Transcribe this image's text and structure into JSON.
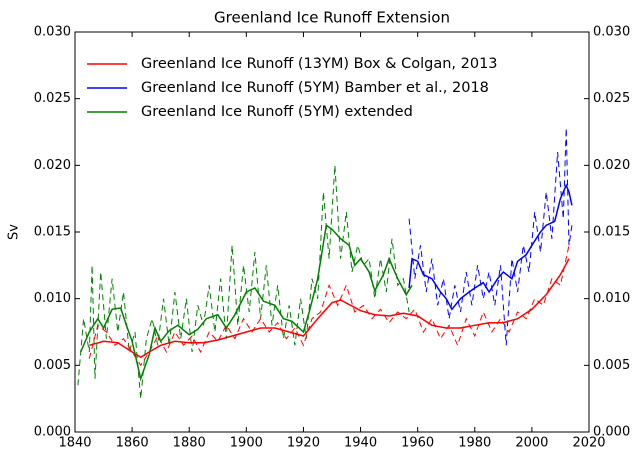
{
  "chart_data": {
    "type": "line",
    "title": "Greenland Ice Runoff Extension",
    "y_label": "Sv",
    "xlim": [
      1840,
      2020
    ],
    "xticks": [
      1840,
      1860,
      1880,
      1900,
      1920,
      1940,
      1960,
      1980,
      2000,
      2020
    ],
    "ylim": [
      0,
      0.03
    ],
    "yticks": [
      {
        "value": 0,
        "label": "0.000"
      },
      {
        "value": 0.005,
        "label": "0.005"
      },
      {
        "value": 0.01,
        "label": "0.010"
      },
      {
        "value": 0.015,
        "label": "0.015"
      },
      {
        "value": 0.02,
        "label": "0.020"
      },
      {
        "value": 0.025,
        "label": "0.025"
      },
      {
        "value": 0.03,
        "label": "0.030"
      }
    ],
    "y2lim": [
      0,
      0.03
    ],
    "y2ticks": [
      {
        "value": 0,
        "label": "0.000"
      },
      {
        "value": 0.005,
        "label": "0.005"
      },
      {
        "value": 0.01,
        "label": "0.010"
      },
      {
        "value": 0.015,
        "label": "0.015"
      },
      {
        "value": 0.02,
        "label": "0.020"
      },
      {
        "value": 0.025,
        "label": "0.025"
      },
      {
        "value": 0.03,
        "label": "0.030"
      }
    ],
    "grid": false,
    "legend": "upper left",
    "series": [
      {
        "color": "#008000",
        "dashed": true,
        "x": [
          1841,
          1843,
          1845,
          1846,
          1847,
          1849,
          1851,
          1853,
          1855,
          1857,
          1859,
          1861,
          1863,
          1865,
          1867,
          1869,
          1871,
          1873,
          1875,
          1877,
          1879,
          1881,
          1883,
          1885,
          1887,
          1889,
          1891,
          1893,
          1895,
          1897,
          1899,
          1901,
          1903,
          1905,
          1907,
          1909,
          1911,
          1913,
          1915,
          1917,
          1919,
          1921,
          1923,
          1925,
          1927,
          1929,
          1931,
          1933,
          1935,
          1937,
          1939,
          1941,
          1943,
          1945,
          1947,
          1949,
          1951,
          1953,
          1955,
          1957
        ],
        "values": [
          0.0035,
          0.0085,
          0.006,
          0.0125,
          0.004,
          0.012,
          0.007,
          0.0115,
          0.0075,
          0.0105,
          0.006,
          0.0075,
          0.0025,
          0.007,
          0.0085,
          0.0065,
          0.01,
          0.0065,
          0.0105,
          0.007,
          0.01,
          0.006,
          0.0095,
          0.008,
          0.011,
          0.0075,
          0.0115,
          0.007,
          0.014,
          0.008,
          0.0125,
          0.009,
          0.0135,
          0.0085,
          0.0125,
          0.008,
          0.011,
          0.007,
          0.0095,
          0.0065,
          0.01,
          0.007,
          0.0115,
          0.01,
          0.018,
          0.013,
          0.02,
          0.013,
          0.0165,
          0.012,
          0.014,
          0.0125,
          0.013,
          0.01,
          0.013,
          0.0105,
          0.0145,
          0.011,
          0.0115,
          0.009
        ]
      },
      {
        "color": "#ff0000",
        "dashed": true,
        "x": [
          1845,
          1848,
          1851,
          1854,
          1857,
          1860,
          1863,
          1866,
          1869,
          1872,
          1875,
          1878,
          1881,
          1884,
          1887,
          1890,
          1893,
          1896,
          1899,
          1902,
          1905,
          1908,
          1911,
          1914,
          1917,
          1920,
          1923,
          1926,
          1929,
          1932,
          1935,
          1938,
          1941,
          1944,
          1947,
          1950,
          1953,
          1956,
          1959,
          1962,
          1965,
          1968,
          1971,
          1974,
          1977,
          1980,
          1983,
          1986,
          1989,
          1992,
          1995,
          1998,
          2001,
          2004,
          2007,
          2010,
          2013
        ],
        "values": [
          0.0055,
          0.008,
          0.0075,
          0.0065,
          0.007,
          0.006,
          0.005,
          0.006,
          0.0072,
          0.006,
          0.0075,
          0.0065,
          0.0072,
          0.006,
          0.0075,
          0.0068,
          0.008,
          0.007,
          0.0085,
          0.0075,
          0.0085,
          0.0075,
          0.0082,
          0.007,
          0.0078,
          0.0065,
          0.0085,
          0.009,
          0.011,
          0.0095,
          0.011,
          0.009,
          0.0095,
          0.0085,
          0.0092,
          0.0082,
          0.009,
          0.0085,
          0.0092,
          0.0075,
          0.0085,
          0.007,
          0.008,
          0.0065,
          0.0085,
          0.0072,
          0.009,
          0.0075,
          0.0085,
          0.0075,
          0.009,
          0.0085,
          0.01,
          0.0095,
          0.0115,
          0.011,
          0.014
        ]
      },
      {
        "color": "#0000ff",
        "dashed": true,
        "x": [
          1957,
          1959,
          1961,
          1963,
          1965,
          1967,
          1969,
          1971,
          1973,
          1975,
          1977,
          1979,
          1981,
          1983,
          1985,
          1987,
          1989,
          1991,
          1993,
          1995,
          1997,
          1999,
          2001,
          2003,
          2005,
          2007,
          2009,
          2011,
          2012,
          2013,
          2014
        ],
        "values": [
          0.016,
          0.0115,
          0.014,
          0.0105,
          0.013,
          0.0095,
          0.0115,
          0.0085,
          0.011,
          0.009,
          0.012,
          0.0095,
          0.0125,
          0.01,
          0.012,
          0.0095,
          0.0125,
          0.0065,
          0.013,
          0.0105,
          0.014,
          0.012,
          0.0165,
          0.0135,
          0.018,
          0.0145,
          0.021,
          0.016,
          0.0228,
          0.014,
          0.0155
        ]
      },
      {
        "name": "Greenland Ice Runoff (13YM) Box & Colgan, 2013",
        "color": "#ff0000",
        "x": [
          1845,
          1850,
          1855,
          1860,
          1863,
          1866,
          1870,
          1875,
          1880,
          1885,
          1890,
          1895,
          1900,
          1905,
          1910,
          1915,
          1920,
          1925,
          1930,
          1933,
          1940,
          1945,
          1950,
          1955,
          1960,
          1965,
          1970,
          1975,
          1980,
          1985,
          1990,
          1995,
          2000,
          2005,
          2010,
          2013
        ],
        "values": [
          0.0065,
          0.0068,
          0.0067,
          0.006,
          0.0056,
          0.006,
          0.0065,
          0.0068,
          0.0067,
          0.0067,
          0.0069,
          0.0072,
          0.0075,
          0.0078,
          0.0078,
          0.0075,
          0.0072,
          0.0085,
          0.0097,
          0.0099,
          0.0091,
          0.0088,
          0.0087,
          0.0089,
          0.0087,
          0.008,
          0.0078,
          0.0078,
          0.008,
          0.0082,
          0.0082,
          0.0085,
          0.0092,
          0.0103,
          0.0118,
          0.013
        ]
      },
      {
        "name": "Greenland Ice Runoff (5YM) Bamber et al., 2018",
        "color": "#0000ff",
        "x": [
          1957,
          1958,
          1960,
          1962,
          1965,
          1968,
          1970,
          1972,
          1975,
          1978,
          1980,
          1983,
          1985,
          1988,
          1990,
          1993,
          1995,
          1998,
          2000,
          2003,
          2005,
          2008,
          2010,
          2012,
          2013,
          2014
        ],
        "values": [
          0.0108,
          0.013,
          0.0128,
          0.0118,
          0.0115,
          0.0105,
          0.01,
          0.0092,
          0.01,
          0.0105,
          0.0108,
          0.0112,
          0.0105,
          0.0115,
          0.012,
          0.0115,
          0.0128,
          0.0133,
          0.014,
          0.015,
          0.0155,
          0.0158,
          0.0175,
          0.0185,
          0.018,
          0.017
        ]
      },
      {
        "name": "Greenland Ice Runoff (5YM) extended",
        "color": "#008000",
        "x": [
          1842,
          1845,
          1848,
          1850,
          1853,
          1856,
          1858,
          1860,
          1863,
          1866,
          1868,
          1870,
          1873,
          1876,
          1880,
          1883,
          1886,
          1890,
          1893,
          1896,
          1900,
          1903,
          1906,
          1910,
          1913,
          1916,
          1920,
          1922,
          1925,
          1928,
          1930,
          1933,
          1936,
          1938,
          1940,
          1943,
          1945,
          1948,
          1950,
          1953,
          1956,
          1958
        ],
        "values": [
          0.006,
          0.0075,
          0.0085,
          0.0078,
          0.0092,
          0.0093,
          0.008,
          0.0068,
          0.004,
          0.0058,
          0.0078,
          0.0068,
          0.0076,
          0.008,
          0.0073,
          0.0077,
          0.0085,
          0.0088,
          0.0078,
          0.0088,
          0.0105,
          0.0108,
          0.0098,
          0.0095,
          0.0085,
          0.0083,
          0.0075,
          0.009,
          0.0115,
          0.0155,
          0.0152,
          0.0145,
          0.014,
          0.0125,
          0.013,
          0.012,
          0.0106,
          0.0118,
          0.013,
          0.0115,
          0.0103,
          0.011
        ]
      }
    ]
  }
}
